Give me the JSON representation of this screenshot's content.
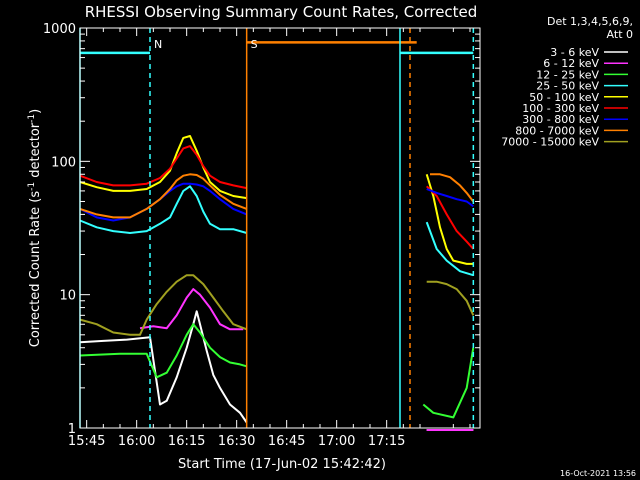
{
  "chart_data": {
    "type": "line",
    "title": "RHESSI Observing Summary Count Rates, Corrected",
    "xlabel": "Start Time (17-Jun-02 15:42:42)",
    "ylabel_main": "Corrected Count Rate (s",
    "ylabel_sup1": "-1",
    "ylabel_mid": " detector",
    "ylabel_sup2": "-1",
    "ylabel_end": ")",
    "yscale": "log",
    "ylim": [
      1,
      1000
    ],
    "xlim_min": [
      -2,
      118
    ],
    "x_ticks": [
      {
        "m": 0,
        "label": "15:45"
      },
      {
        "m": 15,
        "label": "16:00"
      },
      {
        "m": 30,
        "label": "16:15"
      },
      {
        "m": 45,
        "label": "16:30"
      },
      {
        "m": 60,
        "label": "16:45"
      },
      {
        "m": 75,
        "label": "17:00"
      },
      {
        "m": 90,
        "label": "17:15"
      }
    ],
    "y_ticks": [
      {
        "v": 1,
        "label": "1"
      },
      {
        "v": 10,
        "label": "10"
      },
      {
        "v": 100,
        "label": "100"
      },
      {
        "v": 1000,
        "label": "1000"
      }
    ],
    "legend_header": [
      "Det 1,3,4,5,6,9,",
      "Att 0"
    ],
    "legend_position": "top-right, outside plot",
    "series": [
      {
        "name": "3 - 6 keV",
        "color": "#ffffff",
        "points": [
          [
            -2,
            4.4
          ],
          [
            5,
            4.5
          ],
          [
            12,
            4.6
          ],
          [
            19,
            4.8
          ],
          [
            22,
            1.5
          ],
          [
            24,
            1.6
          ],
          [
            27,
            2.4
          ],
          [
            30,
            4.0
          ],
          [
            32,
            6.0
          ],
          [
            33,
            7.5
          ],
          [
            34,
            6.0
          ],
          [
            36,
            3.8
          ],
          [
            38,
            2.5
          ],
          [
            40,
            2.0
          ],
          [
            43,
            1.5
          ],
          [
            46,
            1.3
          ],
          [
            48,
            1.1
          ],
          [
            null,
            null
          ],
          [
            102,
            0.9
          ],
          [
            116,
            0.9
          ]
        ]
      },
      {
        "name": "6 - 12 keV",
        "color": "#ff33ff",
        "points": [
          [
            16,
            5.6
          ],
          [
            20,
            5.8
          ],
          [
            24,
            5.6
          ],
          [
            27,
            7.0
          ],
          [
            30,
            9.5
          ],
          [
            32,
            11.0
          ],
          [
            34,
            10.0
          ],
          [
            37,
            8.0
          ],
          [
            40,
            6.0
          ],
          [
            43,
            5.5
          ],
          [
            47,
            5.5
          ],
          [
            null,
            null
          ],
          [
            102,
            0.9
          ],
          [
            116,
            0.9
          ]
        ]
      },
      {
        "name": "12 - 25 keV",
        "color": "#33ff33",
        "points": [
          [
            -2,
            3.5
          ],
          [
            10,
            3.6
          ],
          [
            18,
            3.6
          ],
          [
            21,
            2.4
          ],
          [
            24,
            2.6
          ],
          [
            27,
            3.5
          ],
          [
            30,
            5.0
          ],
          [
            32,
            6.0
          ],
          [
            34,
            5.2
          ],
          [
            37,
            4.0
          ],
          [
            40,
            3.4
          ],
          [
            43,
            3.1
          ],
          [
            46,
            3.0
          ],
          [
            48,
            2.9
          ],
          [
            null,
            null
          ],
          [
            101,
            1.5
          ],
          [
            104,
            1.3
          ],
          [
            110,
            1.2
          ],
          [
            114,
            2.0
          ],
          [
            116,
            4.0
          ]
        ]
      },
      {
        "name": "25 - 50 keV",
        "color": "#33ffff",
        "points": [
          [
            -2,
            36
          ],
          [
            3,
            32
          ],
          [
            8,
            30
          ],
          [
            13,
            29
          ],
          [
            18,
            30
          ],
          [
            22,
            34
          ],
          [
            25,
            38
          ],
          [
            27,
            48
          ],
          [
            29,
            60
          ],
          [
            31,
            65
          ],
          [
            33,
            55
          ],
          [
            35,
            42
          ],
          [
            37,
            34
          ],
          [
            40,
            31
          ],
          [
            44,
            31
          ],
          [
            48,
            29
          ],
          [
            null,
            null
          ],
          [
            102,
            35
          ],
          [
            105,
            22
          ],
          [
            108,
            18
          ],
          [
            112,
            15
          ],
          [
            116,
            14
          ]
        ]
      },
      {
        "name": "50 - 100 keV",
        "color": "#ffff00",
        "points": [
          [
            -2,
            70
          ],
          [
            3,
            64
          ],
          [
            8,
            60
          ],
          [
            13,
            60
          ],
          [
            18,
            62
          ],
          [
            22,
            70
          ],
          [
            25,
            85
          ],
          [
            27,
            115
          ],
          [
            29,
            150
          ],
          [
            31,
            155
          ],
          [
            33,
            120
          ],
          [
            35,
            90
          ],
          [
            37,
            70
          ],
          [
            40,
            60
          ],
          [
            44,
            55
          ],
          [
            48,
            53
          ],
          [
            null,
            null
          ],
          [
            102,
            80
          ],
          [
            104,
            55
          ],
          [
            106,
            32
          ],
          [
            108,
            22
          ],
          [
            110,
            18
          ],
          [
            114,
            17
          ],
          [
            116,
            17
          ]
        ]
      },
      {
        "name": "100 - 300 keV",
        "color": "#ff0000",
        "points": [
          [
            -2,
            78
          ],
          [
            3,
            70
          ],
          [
            8,
            66
          ],
          [
            13,
            66
          ],
          [
            18,
            68
          ],
          [
            22,
            75
          ],
          [
            25,
            88
          ],
          [
            27,
            105
          ],
          [
            29,
            125
          ],
          [
            31,
            130
          ],
          [
            33,
            112
          ],
          [
            35,
            92
          ],
          [
            37,
            78
          ],
          [
            40,
            70
          ],
          [
            44,
            66
          ],
          [
            48,
            63
          ],
          [
            null,
            null
          ],
          [
            102,
            65
          ],
          [
            105,
            55
          ],
          [
            108,
            40
          ],
          [
            111,
            30
          ],
          [
            114,
            25
          ],
          [
            116,
            22
          ]
        ]
      },
      {
        "name": "300 - 800 keV",
        "color": "#0000ff",
        "points": [
          [
            -2,
            44
          ],
          [
            3,
            38
          ],
          [
            8,
            36
          ],
          [
            13,
            38
          ],
          [
            18,
            44
          ],
          [
            22,
            52
          ],
          [
            25,
            60
          ],
          [
            27,
            65
          ],
          [
            29,
            68
          ],
          [
            31,
            68
          ],
          [
            33,
            67
          ],
          [
            35,
            65
          ],
          [
            37,
            60
          ],
          [
            40,
            52
          ],
          [
            44,
            44
          ],
          [
            48,
            40
          ],
          [
            null,
            null
          ],
          [
            102,
            62
          ],
          [
            105,
            58
          ],
          [
            108,
            55
          ],
          [
            111,
            52
          ],
          [
            114,
            50
          ],
          [
            116,
            46
          ]
        ]
      },
      {
        "name": "800 - 7000 keV",
        "color": "#ff8000",
        "points": [
          [
            -2,
            44
          ],
          [
            3,
            40
          ],
          [
            8,
            38
          ],
          [
            13,
            38
          ],
          [
            18,
            44
          ],
          [
            22,
            52
          ],
          [
            25,
            62
          ],
          [
            27,
            72
          ],
          [
            29,
            78
          ],
          [
            31,
            80
          ],
          [
            33,
            79
          ],
          [
            35,
            74
          ],
          [
            37,
            66
          ],
          [
            40,
            56
          ],
          [
            44,
            48
          ],
          [
            48,
            44
          ],
          [
            null,
            null
          ],
          [
            103,
            80
          ],
          [
            106,
            80
          ],
          [
            109,
            76
          ],
          [
            112,
            66
          ],
          [
            114,
            58
          ],
          [
            116,
            50
          ]
        ]
      },
      {
        "name": "7000 - 15000 keV",
        "color": "#a0a020",
        "points": [
          [
            -2,
            6.5
          ],
          [
            3,
            6.0
          ],
          [
            8,
            5.2
          ],
          [
            13,
            5.0
          ],
          [
            16,
            5.0
          ],
          [
            18,
            6.5
          ],
          [
            21,
            8.5
          ],
          [
            24,
            10.5
          ],
          [
            27,
            12.5
          ],
          [
            30,
            14.0
          ],
          [
            32,
            14.0
          ],
          [
            35,
            12.0
          ],
          [
            38,
            9.5
          ],
          [
            41,
            7.5
          ],
          [
            44,
            6.0
          ],
          [
            48,
            5.5
          ],
          [
            null,
            null
          ],
          [
            102,
            12.5
          ],
          [
            105,
            12.5
          ],
          [
            108,
            12.0
          ],
          [
            111,
            11.0
          ],
          [
            114,
            9.0
          ],
          [
            116,
            7.0
          ]
        ]
      }
    ],
    "extra_lines": [
      {
        "color": "#33ffff",
        "points": [
          [
            -2,
            650
          ],
          [
            19,
            650
          ]
        ]
      },
      {
        "color": "#33ffff",
        "points": [
          [
            94,
            650
          ],
          [
            116,
            650
          ]
        ]
      },
      {
        "color": "#ff8000",
        "points": [
          [
            48,
            780
          ],
          [
            99,
            780
          ]
        ]
      }
    ],
    "vlines": [
      {
        "m": -2,
        "color": "#33ffff",
        "dash": false
      },
      {
        "m": 19,
        "color": "#33ffff",
        "dash": true
      },
      {
        "m": 94,
        "color": "#33ffff",
        "dash": false
      },
      {
        "m": 116,
        "color": "#33ffff",
        "dash": true
      },
      {
        "m": 48,
        "color": "#ff8000",
        "dash": false
      },
      {
        "m": 97,
        "color": "#ff8000",
        "dash": true
      }
    ],
    "markers": [
      {
        "m": 19,
        "label": "N",
        "color": "#33ffff"
      },
      {
        "m": 48,
        "label": "S",
        "color": "#ff8000"
      }
    ],
    "footer": "16-Oct-2021 13:56"
  }
}
